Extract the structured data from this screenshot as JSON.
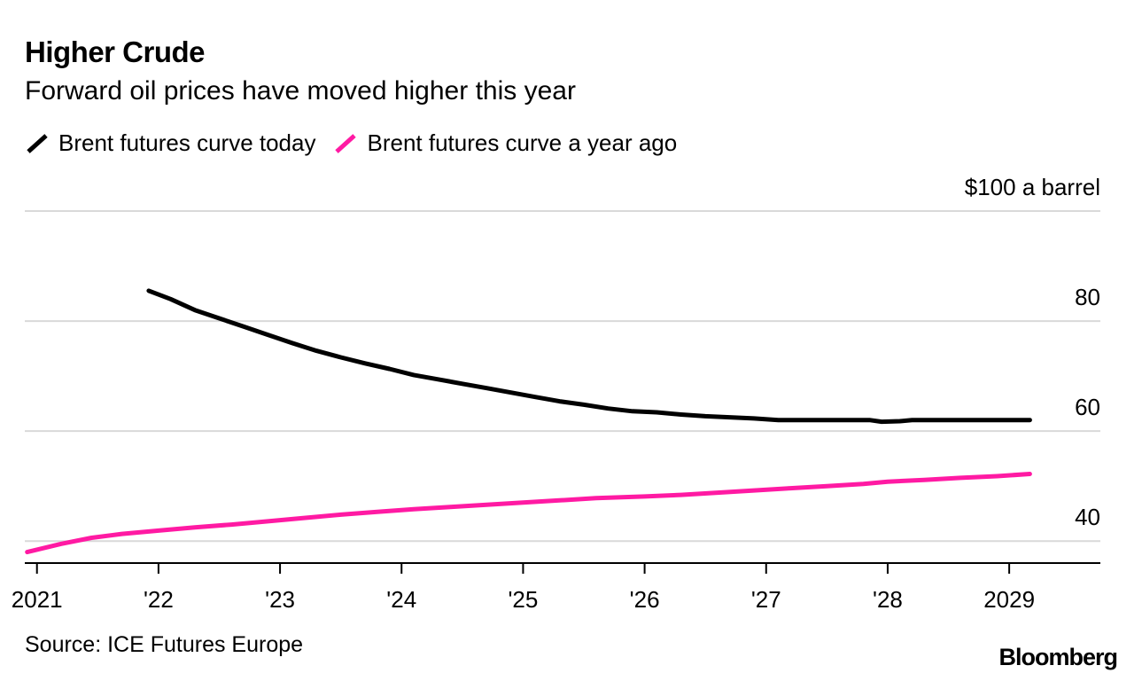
{
  "chart_data": {
    "type": "line",
    "title": "Higher Crude",
    "subtitle": "Forward oil prices have moved higher this year",
    "unit_label": "$100 a barrel",
    "ylim": [
      36,
      100
    ],
    "xlim": [
      2020.9,
      2029.75
    ],
    "y_ticks": [
      {
        "value": 100,
        "label": "$100 a barrel"
      },
      {
        "value": 80,
        "label": "80"
      },
      {
        "value": 60,
        "label": "60"
      },
      {
        "value": 40,
        "label": "40"
      }
    ],
    "x_ticks": [
      {
        "value": 2021,
        "label": "2021"
      },
      {
        "value": 2022,
        "label": "'22"
      },
      {
        "value": 2023,
        "label": "'23"
      },
      {
        "value": 2024,
        "label": "'24"
      },
      {
        "value": 2025,
        "label": "'25"
      },
      {
        "value": 2026,
        "label": "'26"
      },
      {
        "value": 2027,
        "label": "'27"
      },
      {
        "value": 2028,
        "label": "'28"
      },
      {
        "value": 2029,
        "label": "2029"
      }
    ],
    "series": [
      {
        "name": "Brent futures curve today",
        "color": "#000000",
        "points": [
          [
            2021.92,
            85.5
          ],
          [
            2022.1,
            84.0
          ],
          [
            2022.3,
            82.0
          ],
          [
            2022.5,
            80.5
          ],
          [
            2022.7,
            79.0
          ],
          [
            2022.9,
            77.5
          ],
          [
            2023.1,
            76.0
          ],
          [
            2023.3,
            74.6
          ],
          [
            2023.5,
            73.4
          ],
          [
            2023.7,
            72.3
          ],
          [
            2023.9,
            71.3
          ],
          [
            2024.1,
            70.2
          ],
          [
            2024.3,
            69.4
          ],
          [
            2024.5,
            68.6
          ],
          [
            2024.7,
            67.8
          ],
          [
            2024.9,
            67.0
          ],
          [
            2025.1,
            66.2
          ],
          [
            2025.3,
            65.4
          ],
          [
            2025.5,
            64.8
          ],
          [
            2025.7,
            64.1
          ],
          [
            2025.9,
            63.6
          ],
          [
            2026.1,
            63.4
          ],
          [
            2026.3,
            63.0
          ],
          [
            2026.5,
            62.7
          ],
          [
            2026.7,
            62.5
          ],
          [
            2026.9,
            62.3
          ],
          [
            2027.1,
            62.0
          ],
          [
            2027.3,
            62.0
          ],
          [
            2027.5,
            62.0
          ],
          [
            2027.7,
            62.0
          ],
          [
            2027.85,
            62.0
          ],
          [
            2027.95,
            61.7
          ],
          [
            2028.1,
            61.8
          ],
          [
            2028.2,
            62.0
          ],
          [
            2028.5,
            62.0
          ],
          [
            2028.8,
            62.0
          ],
          [
            2029.17,
            62.0
          ]
        ]
      },
      {
        "name": "Brent futures curve a year ago",
        "color": "#ff1aa3",
        "points": [
          [
            2020.92,
            38.0
          ],
          [
            2021.2,
            39.5
          ],
          [
            2021.45,
            40.6
          ],
          [
            2021.7,
            41.3
          ],
          [
            2022.0,
            41.9
          ],
          [
            2022.3,
            42.5
          ],
          [
            2022.6,
            43.0
          ],
          [
            2022.9,
            43.6
          ],
          [
            2023.2,
            44.2
          ],
          [
            2023.5,
            44.8
          ],
          [
            2023.8,
            45.3
          ],
          [
            2024.1,
            45.8
          ],
          [
            2024.4,
            46.2
          ],
          [
            2024.7,
            46.6
          ],
          [
            2025.0,
            47.0
          ],
          [
            2025.3,
            47.4
          ],
          [
            2025.6,
            47.8
          ],
          [
            2026.0,
            48.1
          ],
          [
            2026.3,
            48.4
          ],
          [
            2026.6,
            48.8
          ],
          [
            2026.9,
            49.2
          ],
          [
            2027.2,
            49.6
          ],
          [
            2027.5,
            50.0
          ],
          [
            2027.8,
            50.4
          ],
          [
            2028.0,
            50.8
          ],
          [
            2028.3,
            51.1
          ],
          [
            2028.6,
            51.5
          ],
          [
            2028.9,
            51.8
          ],
          [
            2029.17,
            52.2
          ]
        ]
      }
    ]
  },
  "source": "Source: ICE Futures Europe",
  "brand": "Bloomberg"
}
